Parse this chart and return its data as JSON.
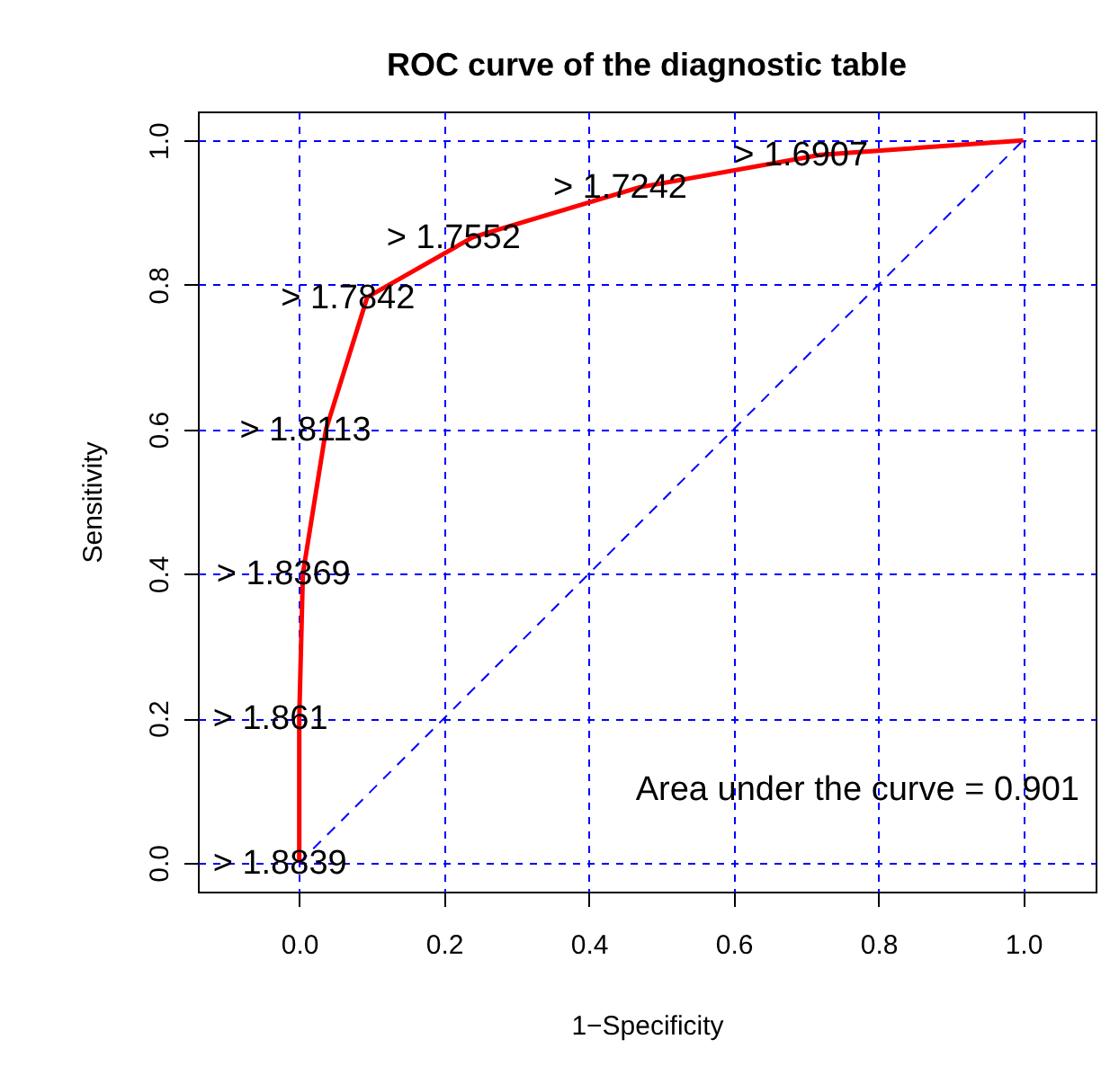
{
  "chart_data": {
    "type": "line",
    "title": "ROC curve of the diagnostic table",
    "xlabel": "1−Specificity",
    "ylabel": "Sensitivity",
    "xlim": [
      -0.14,
      1.1
    ],
    "ylim": [
      -0.04,
      1.04
    ],
    "xticks": [
      {
        "value": 0,
        "label": "0.0"
      },
      0.2,
      0.4,
      0.6,
      0.8,
      {
        "value": 1,
        "label": "1.0"
      }
    ],
    "yticks": [
      {
        "value": 0,
        "label": "0.0"
      },
      0.2,
      0.4,
      0.6,
      0.8,
      {
        "value": 1,
        "label": "1.0"
      }
    ],
    "grid": true,
    "series": [
      {
        "color": "#ff0000",
        "line_style": "solid",
        "x": [
          0,
          0,
          0.005,
          0.037,
          0.094,
          0.24,
          0.47,
          0.72,
          1
        ],
        "values": [
          0,
          0.2,
          0.4,
          0.6,
          0.783,
          0.866,
          0.935,
          0.98,
          1
        ]
      },
      {
        "color": "#0000ff",
        "line_style": "dashed",
        "x": [
          0,
          1
        ],
        "values": [
          0,
          1
        ]
      }
    ],
    "annotations": [
      {
        "text": "> 1.8839",
        "x": 0,
        "y": 0
      },
      {
        "text": "> 1.861",
        "x": 0,
        "y": 0.2
      },
      {
        "text": "> 1.8369",
        "x": 0.005,
        "y": 0.4
      },
      {
        "text": "> 1.8113",
        "x": 0.037,
        "y": 0.6
      },
      {
        "text": "> 1.7842",
        "x": 0.094,
        "y": 0.783
      },
      {
        "text": "> 1.7552",
        "x": 0.24,
        "y": 0.866
      },
      {
        "text": "> 1.7242",
        "x": 0.47,
        "y": 0.935
      },
      {
        "text": "> 1.6907",
        "x": 0.72,
        "y": 0.98
      },
      "Area under the curve = 0.901"
    ]
  }
}
